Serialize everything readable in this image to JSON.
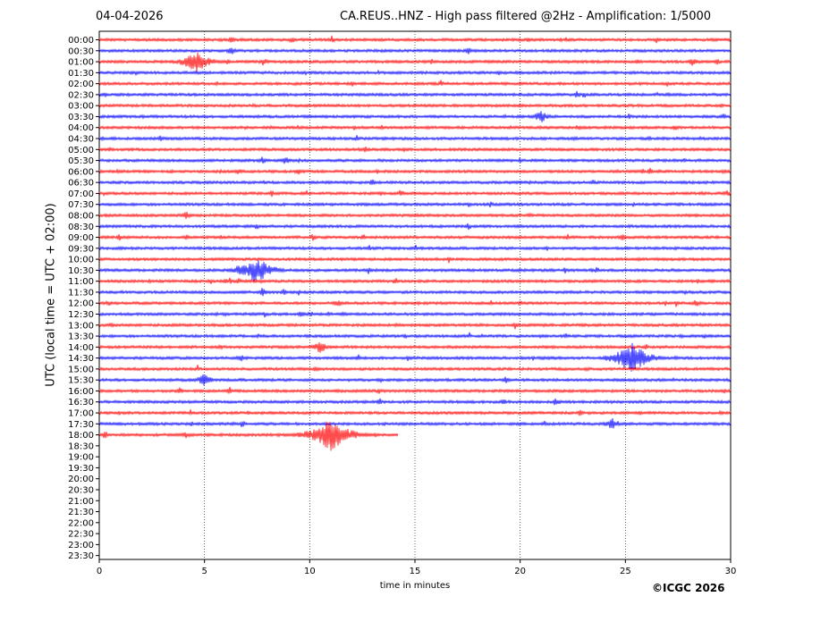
{
  "chart_data": {
    "type": "seismogram",
    "date": "04-04-2026",
    "title": "CA.REUS..HNZ - High pass filtered @2Hz - Amplification: 1/5000",
    "xlabel": "time in minutes",
    "ylabel": "UTC (local time = UTC + 02:00)",
    "xlim": [
      0,
      30
    ],
    "x_ticks": [
      0,
      5,
      10,
      15,
      20,
      25,
      30
    ],
    "x_tick_labels": [
      "0",
      "5",
      "10",
      "15",
      "20",
      "25",
      "30"
    ],
    "vertical_gridlines": [
      5,
      10,
      15,
      20,
      25
    ],
    "row_labels": [
      "00:00",
      "00:30",
      "01:00",
      "01:30",
      "02:00",
      "02:30",
      "03:00",
      "03:30",
      "04:00",
      "04:30",
      "05:00",
      "05:30",
      "06:00",
      "06:30",
      "07:00",
      "07:30",
      "08:00",
      "08:30",
      "09:00",
      "09:30",
      "10:00",
      "10:30",
      "11:00",
      "11:30",
      "12:00",
      "12:30",
      "13:00",
      "13:30",
      "14:00",
      "14:30",
      "15:00",
      "15:30",
      "16:00",
      "16:30",
      "17:00",
      "17:30",
      "18:00",
      "18:30",
      "19:00",
      "19:30",
      "20:00",
      "20:30",
      "21:00",
      "21:30",
      "22:00",
      "22:30",
      "23:00",
      "23:30"
    ],
    "trace_colors": [
      "#ff0000",
      "#0000ff"
    ],
    "recorded_rows": 37,
    "last_row_end_minute": 14.2,
    "events": [
      {
        "row": "01:00",
        "minute": 4.6,
        "amplitude": 14
      },
      {
        "row": "10:30",
        "minute": 7.5,
        "amplitude": 16
      },
      {
        "row": "10:30",
        "minute": 6.7,
        "amplitude": 8
      },
      {
        "row": "14:30",
        "minute": 25.3,
        "amplitude": 18
      },
      {
        "row": "15:30",
        "minute": 5.0,
        "amplitude": 8
      },
      {
        "row": "18:00",
        "minute": 11.0,
        "amplitude": 20
      },
      {
        "row": "14:00",
        "minute": 10.5,
        "amplitude": 8
      },
      {
        "row": "03:30",
        "minute": 21.0,
        "amplitude": 8
      },
      {
        "row": "17:30",
        "minute": 24.4,
        "amplitude": 8
      }
    ]
  },
  "footer": {
    "copyright": "©ICGC 2026"
  }
}
